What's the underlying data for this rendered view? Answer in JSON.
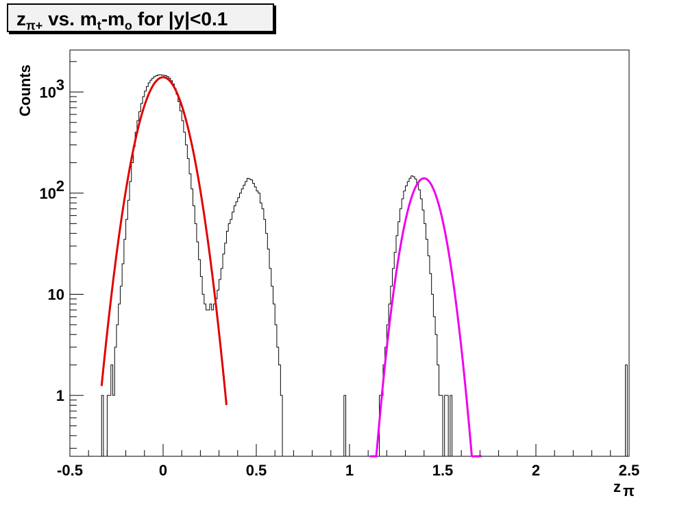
{
  "chart_data": {
    "type": "line",
    "title_parts": {
      "a": "z",
      "a_sub": "π+",
      "b": " vs. m",
      "b_sub": "t",
      "c": "-m",
      "c_sub": "o",
      "d": " for |y|<0.1"
    },
    "xlabel": "z",
    "xlabel_sub": "π",
    "ylabel": "Counts",
    "xlim": [
      -0.5,
      2.5
    ],
    "ylim": [
      0.25,
      2600
    ],
    "yscale": "log",
    "grid": false,
    "x_ticks": [
      {
        "v": -0.5,
        "label": "-0.5"
      },
      {
        "v": 0,
        "label": "0"
      },
      {
        "v": 0.5,
        "label": "0.5"
      },
      {
        "v": 1,
        "label": "1"
      },
      {
        "v": 1.5,
        "label": "1.5"
      },
      {
        "v": 2,
        "label": "2"
      },
      {
        "v": 2.5,
        "label": "2.5"
      }
    ],
    "y_ticks": [
      {
        "v": 1,
        "label": "1",
        "sup": ""
      },
      {
        "v": 10,
        "label": "10",
        "sup": ""
      },
      {
        "v": 100,
        "label": "10",
        "sup": "2"
      },
      {
        "v": 1000,
        "label": "10",
        "sup": "3"
      }
    ],
    "histogram": {
      "bin_width": 0.01,
      "points": [
        [
          -0.33,
          1
        ],
        [
          -0.32,
          0.25
        ],
        [
          -0.31,
          0.25
        ],
        [
          -0.3,
          1
        ],
        [
          -0.29,
          1
        ],
        [
          -0.28,
          2
        ],
        [
          -0.27,
          1
        ],
        [
          -0.26,
          3
        ],
        [
          -0.25,
          5
        ],
        [
          -0.24,
          8
        ],
        [
          -0.23,
          12
        ],
        [
          -0.22,
          20
        ],
        [
          -0.21,
          35
        ],
        [
          -0.2,
          55
        ],
        [
          -0.19,
          85
        ],
        [
          -0.18,
          130
        ],
        [
          -0.17,
          200
        ],
        [
          -0.16,
          290
        ],
        [
          -0.15,
          400
        ],
        [
          -0.14,
          520
        ],
        [
          -0.13,
          640
        ],
        [
          -0.12,
          770
        ],
        [
          -0.11,
          900
        ],
        [
          -0.1,
          1020
        ],
        [
          -0.09,
          1130
        ],
        [
          -0.08,
          1230
        ],
        [
          -0.07,
          1310
        ],
        [
          -0.06,
          1370
        ],
        [
          -0.05,
          1420
        ],
        [
          -0.04,
          1450
        ],
        [
          -0.03,
          1470
        ],
        [
          -0.02,
          1480
        ],
        [
          -0.01,
          1470
        ],
        [
          0.0,
          1460
        ],
        [
          0.01,
          1450
        ],
        [
          0.02,
          1420
        ],
        [
          0.03,
          1370
        ],
        [
          0.04,
          1290
        ],
        [
          0.05,
          1200
        ],
        [
          0.06,
          1080
        ],
        [
          0.07,
          950
        ],
        [
          0.08,
          800
        ],
        [
          0.09,
          650
        ],
        [
          0.1,
          520
        ],
        [
          0.11,
          400
        ],
        [
          0.12,
          300
        ],
        [
          0.13,
          220
        ],
        [
          0.14,
          155
        ],
        [
          0.15,
          110
        ],
        [
          0.16,
          75
        ],
        [
          0.17,
          50
        ],
        [
          0.18,
          33
        ],
        [
          0.19,
          22
        ],
        [
          0.2,
          15
        ],
        [
          0.21,
          10
        ],
        [
          0.22,
          8
        ],
        [
          0.23,
          7
        ],
        [
          0.24,
          7
        ],
        [
          0.25,
          8
        ],
        [
          0.26,
          7
        ],
        [
          0.27,
          8
        ],
        [
          0.28,
          9
        ],
        [
          0.29,
          11
        ],
        [
          0.3,
          14
        ],
        [
          0.31,
          18
        ],
        [
          0.32,
          25
        ],
        [
          0.33,
          32
        ],
        [
          0.34,
          42
        ],
        [
          0.35,
          50
        ],
        [
          0.36,
          55
        ],
        [
          0.37,
          65
        ],
        [
          0.38,
          75
        ],
        [
          0.39,
          82
        ],
        [
          0.4,
          90
        ],
        [
          0.41,
          100
        ],
        [
          0.42,
          110
        ],
        [
          0.43,
          120
        ],
        [
          0.44,
          130
        ],
        [
          0.45,
          140
        ],
        [
          0.46,
          138
        ],
        [
          0.47,
          135
        ],
        [
          0.48,
          125
        ],
        [
          0.49,
          115
        ],
        [
          0.5,
          105
        ],
        [
          0.51,
          100
        ],
        [
          0.52,
          80
        ],
        [
          0.53,
          70
        ],
        [
          0.54,
          55
        ],
        [
          0.55,
          40
        ],
        [
          0.56,
          28
        ],
        [
          0.57,
          18
        ],
        [
          0.58,
          12
        ],
        [
          0.59,
          8
        ],
        [
          0.6,
          5
        ],
        [
          0.61,
          3
        ],
        [
          0.62,
          2
        ],
        [
          0.63,
          1
        ],
        [
          0.64,
          0.25
        ],
        [
          0.96,
          0.25
        ],
        [
          0.97,
          1
        ],
        [
          0.98,
          0.25
        ],
        [
          1.15,
          0.25
        ],
        [
          1.16,
          1
        ],
        [
          1.17,
          1
        ],
        [
          1.18,
          2
        ],
        [
          1.19,
          3
        ],
        [
          1.2,
          5
        ],
        [
          1.21,
          8
        ],
        [
          1.22,
          12
        ],
        [
          1.23,
          18
        ],
        [
          1.24,
          26
        ],
        [
          1.25,
          38
        ],
        [
          1.26,
          52
        ],
        [
          1.27,
          70
        ],
        [
          1.28,
          88
        ],
        [
          1.29,
          105
        ],
        [
          1.3,
          118
        ],
        [
          1.31,
          130
        ],
        [
          1.32,
          140
        ],
        [
          1.33,
          148
        ],
        [
          1.34,
          145
        ],
        [
          1.35,
          138
        ],
        [
          1.36,
          125
        ],
        [
          1.37,
          108
        ],
        [
          1.38,
          88
        ],
        [
          1.39,
          68
        ],
        [
          1.4,
          50
        ],
        [
          1.41,
          35
        ],
        [
          1.42,
          24
        ],
        [
          1.43,
          16
        ],
        [
          1.44,
          10
        ],
        [
          1.45,
          6
        ],
        [
          1.46,
          4
        ],
        [
          1.47,
          2
        ],
        [
          1.48,
          1
        ],
        [
          1.49,
          1
        ],
        [
          1.5,
          0.25
        ],
        [
          1.51,
          1
        ],
        [
          1.52,
          1
        ],
        [
          1.53,
          0.25
        ],
        [
          1.54,
          1
        ],
        [
          1.55,
          0.25
        ],
        [
          2.47,
          0.25
        ],
        [
          2.48,
          2
        ],
        [
          2.49,
          0.25
        ]
      ]
    },
    "fits": [
      {
        "color": "#e00000",
        "mean": 0.0,
        "sigma": 0.088,
        "amplitude": 1400,
        "range": [
          -0.33,
          0.34
        ]
      },
      {
        "color": "#ee00ee",
        "mean": 1.4,
        "sigma": 0.072,
        "amplitude": 140,
        "range": [
          1.11,
          1.71
        ]
      }
    ]
  }
}
